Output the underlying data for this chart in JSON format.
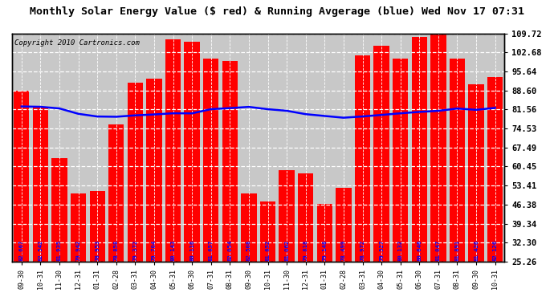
{
  "title": "Monthly Solar Energy Value ($ red) & Running Avgerage (blue) Wed Nov 17 07:31",
  "copyright": "Copyright 2010 Cartronics.com",
  "categories": [
    "09-30",
    "10-31",
    "11-30",
    "12-31",
    "01-31",
    "02-28",
    "03-31",
    "04-30",
    "05-31",
    "06-30",
    "07-31",
    "08-31",
    "09-30",
    "10-31",
    "11-30",
    "12-31",
    "01-31",
    "02-28",
    "03-31",
    "04-30",
    "05-31",
    "06-30",
    "07-31",
    "08-31",
    "09-30",
    "10-31"
  ],
  "bar_values": [
    88.6,
    82.5,
    63.5,
    50.5,
    51.5,
    76.0,
    91.5,
    93.0,
    107.5,
    106.5,
    100.5,
    99.5,
    50.5,
    47.5,
    59.0,
    58.0,
    46.5,
    52.5,
    101.5,
    105.0,
    100.5,
    108.5,
    109.5,
    100.5,
    91.0,
    93.5
  ],
  "running_avg": [
    82.667,
    82.542,
    81.935,
    79.942,
    78.953,
    78.858,
    79.372,
    79.704,
    80.143,
    80.116,
    81.657,
    82.054,
    82.508,
    81.652,
    81.062,
    79.818,
    79.148,
    78.499,
    78.972,
    79.527,
    80.132,
    80.646,
    81.047,
    81.891,
    81.426,
    82.126
  ],
  "bar_label_values": [
    "82.667",
    "82.542",
    "81.935",
    "79.942",
    "78.953",
    "78.858",
    "79.372",
    "79.704",
    "80.143",
    "80.116",
    "81.657",
    "82.054",
    "82.508",
    "81.652",
    "81.062",
    "79.818",
    "79.148",
    "78.499",
    "78.972",
    "79.527",
    "80.132",
    "80.646",
    "81.047",
    "81.891",
    "81.426",
    "82.126"
  ],
  "special_label_index": 17,
  "bar_color": "#ff0000",
  "line_color": "#0000ff",
  "background_color": "#ffffff",
  "plot_bg_color": "#c8c8c8",
  "grid_color": "#ffffff",
  "ytick_color": "#000000",
  "ylim": [
    25.26,
    109.72
  ],
  "yticks": [
    25.26,
    32.3,
    39.34,
    46.38,
    53.41,
    60.45,
    67.49,
    74.53,
    81.56,
    88.6,
    95.64,
    102.68,
    109.72
  ],
  "bar_label_color": "#0000ff",
  "special_label_color": "#0000ff",
  "label_fontsize": 5.2,
  "tick_fontsize": 7.5,
  "title_fontsize": 9.5,
  "copyright_fontsize": 6.5
}
